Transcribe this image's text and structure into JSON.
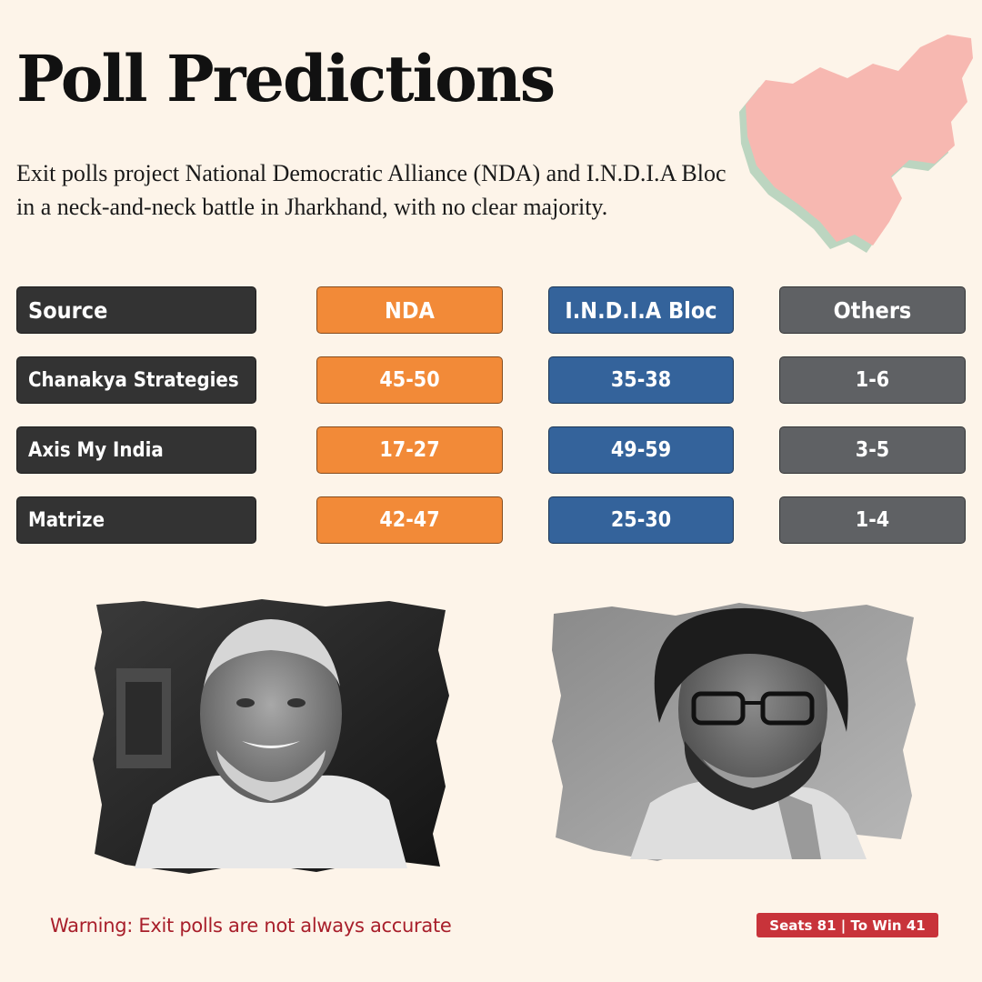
{
  "title": "Poll Predictions",
  "subtitle": "Exit polls project National Democratic Alliance (NDA) and I.N.D.I.A Bloc in a neck-and-neck battle in Jharkhand, with no clear majority.",
  "table": {
    "headers": [
      "Source",
      "NDA",
      "I.N.D.I.A Bloc",
      "Others"
    ],
    "rows": [
      [
        "Chanakya Strategies",
        "45-50",
        "35-38",
        "1-6"
      ],
      [
        "Axis My India",
        "17-27",
        "49-59",
        "3-5"
      ],
      [
        "Matrize",
        "42-47",
        "25-30",
        "1-4"
      ]
    ]
  },
  "colors": {
    "background": "#fdf4e9",
    "nda": "#f28a38",
    "india_bloc": "#34639b",
    "others": "#5f6164",
    "source": "#333333",
    "warning": "#a81e2a",
    "seats_badge": "#c8333a",
    "map": "#f7b8b1"
  },
  "icons": {
    "map": "jharkhand-map-icon",
    "left_photo": "politician-portrait-left",
    "right_photo": "politician-portrait-right"
  },
  "footer": {
    "warning": "Warning: Exit polls are not always accurate",
    "seats": "Seats 81 | To Win 41"
  }
}
